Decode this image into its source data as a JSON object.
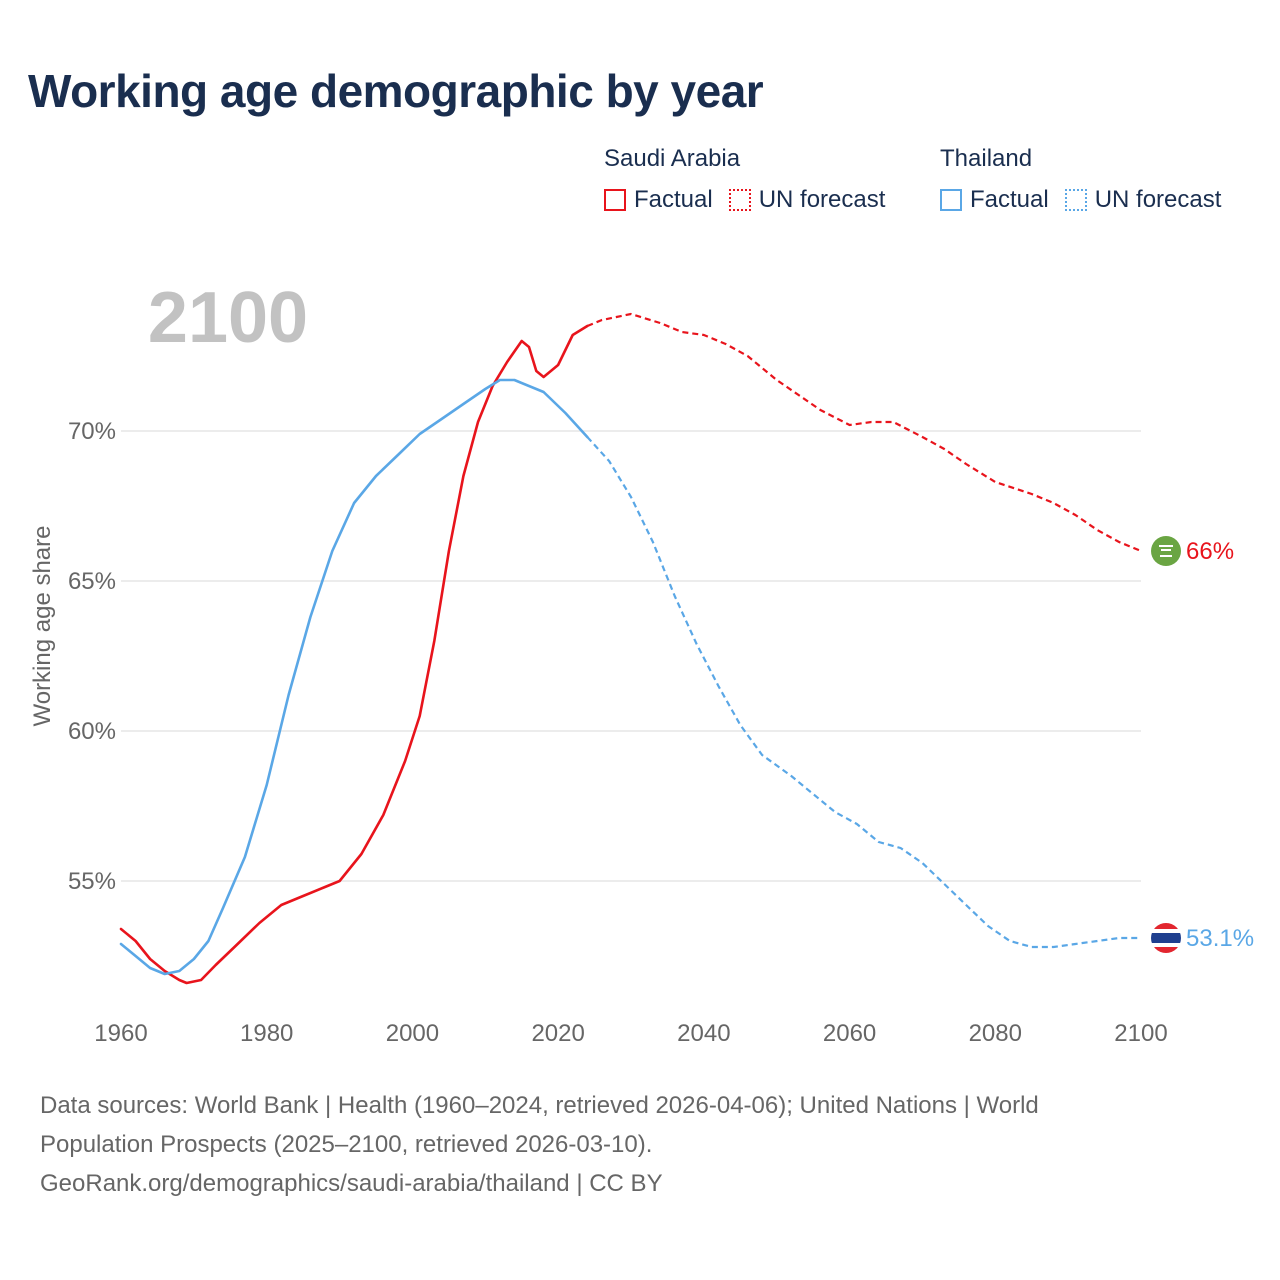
{
  "title": "Working age demographic by year",
  "legend": {
    "groups": [
      {
        "name": "Saudi Arabia",
        "color": "#e8141c",
        "factual_label": "Factual",
        "forecast_label": "UN forecast"
      },
      {
        "name": "Thailand",
        "color": "#5aa7e6",
        "factual_label": "Factual",
        "forecast_label": "UN forecast"
      }
    ]
  },
  "year_label": "2100",
  "end_labels": {
    "saudi": "66%",
    "thailand": "53.1%"
  },
  "footer": {
    "line1": "Data sources: World Bank | Health (1960–2024, retrieved 2026-04-06); United Nations | World",
    "line2": "Population Prospects (2025–2100, retrieved 2026-03-10).",
    "line3": "GeoRank.org/demographics/saudi-arabia/thailand | CC BY"
  },
  "chart_data": {
    "type": "line",
    "title": "Working age demographic by year",
    "xlabel": "",
    "ylabel": "Working age share",
    "xlim": [
      1960,
      2100
    ],
    "ylim": [
      51,
      76
    ],
    "x_ticks": [
      {
        "value": 1960,
        "label": "1960"
      },
      {
        "value": 1980,
        "label": "1980"
      },
      {
        "value": 2000,
        "label": "2000"
      },
      {
        "value": 2020,
        "label": "2020"
      },
      {
        "value": 2040,
        "label": "2040"
      },
      {
        "value": 2060,
        "label": "2060"
      },
      {
        "value": 2080,
        "label": "2080"
      },
      {
        "value": 2100,
        "label": "2100"
      }
    ],
    "y_ticks": [
      {
        "value": 55,
        "label": "55%"
      },
      {
        "value": 60,
        "label": "60%"
      },
      {
        "value": 65,
        "label": "65%"
      },
      {
        "value": 70,
        "label": "70%"
      }
    ],
    "factual_end_year": 2024,
    "series": [
      {
        "name": "Saudi Arabia",
        "color": "#e8141c",
        "end_value": 66.0,
        "points": [
          [
            1960,
            53.4
          ],
          [
            1962,
            53.0
          ],
          [
            1964,
            52.4
          ],
          [
            1966,
            52.0
          ],
          [
            1968,
            51.7
          ],
          [
            1969,
            51.6
          ],
          [
            1971,
            51.7
          ],
          [
            1973,
            52.2
          ],
          [
            1976,
            52.9
          ],
          [
            1979,
            53.6
          ],
          [
            1982,
            54.2
          ],
          [
            1985,
            54.5
          ],
          [
            1988,
            54.8
          ],
          [
            1990,
            55.0
          ],
          [
            1993,
            55.9
          ],
          [
            1996,
            57.2
          ],
          [
            1999,
            59.0
          ],
          [
            2001,
            60.5
          ],
          [
            2003,
            63.0
          ],
          [
            2005,
            66.0
          ],
          [
            2007,
            68.5
          ],
          [
            2009,
            70.3
          ],
          [
            2011,
            71.5
          ],
          [
            2013,
            72.3
          ],
          [
            2015,
            73.0
          ],
          [
            2016,
            72.8
          ],
          [
            2017,
            72.0
          ],
          [
            2018,
            71.8
          ],
          [
            2020,
            72.2
          ],
          [
            2022,
            73.2
          ],
          [
            2024,
            73.5
          ],
          [
            2026,
            73.7
          ],
          [
            2030,
            73.9
          ],
          [
            2034,
            73.6
          ],
          [
            2037,
            73.3
          ],
          [
            2040,
            73.2
          ],
          [
            2043,
            72.9
          ],
          [
            2046,
            72.5
          ],
          [
            2050,
            71.7
          ],
          [
            2053,
            71.2
          ],
          [
            2056,
            70.7
          ],
          [
            2060,
            70.2
          ],
          [
            2063,
            70.3
          ],
          [
            2066,
            70.3
          ],
          [
            2070,
            69.8
          ],
          [
            2073,
            69.4
          ],
          [
            2076,
            68.9
          ],
          [
            2080,
            68.3
          ],
          [
            2085,
            67.9
          ],
          [
            2088,
            67.6
          ],
          [
            2091,
            67.2
          ],
          [
            2094,
            66.7
          ],
          [
            2097,
            66.3
          ],
          [
            2100,
            66.0
          ]
        ]
      },
      {
        "name": "Thailand",
        "color": "#5aa7e6",
        "end_value": 53.1,
        "points": [
          [
            1960,
            52.9
          ],
          [
            1962,
            52.5
          ],
          [
            1964,
            52.1
          ],
          [
            1966,
            51.9
          ],
          [
            1968,
            52.0
          ],
          [
            1970,
            52.4
          ],
          [
            1972,
            53.0
          ],
          [
            1974,
            54.1
          ],
          [
            1977,
            55.8
          ],
          [
            1980,
            58.2
          ],
          [
            1983,
            61.2
          ],
          [
            1986,
            63.8
          ],
          [
            1989,
            66.0
          ],
          [
            1992,
            67.6
          ],
          [
            1995,
            68.5
          ],
          [
            1998,
            69.2
          ],
          [
            2001,
            69.9
          ],
          [
            2004,
            70.4
          ],
          [
            2007,
            70.9
          ],
          [
            2010,
            71.4
          ],
          [
            2012,
            71.7
          ],
          [
            2014,
            71.7
          ],
          [
            2018,
            71.3
          ],
          [
            2021,
            70.6
          ],
          [
            2024,
            69.8
          ],
          [
            2027,
            69.0
          ],
          [
            2030,
            67.8
          ],
          [
            2033,
            66.3
          ],
          [
            2036,
            64.5
          ],
          [
            2039,
            62.9
          ],
          [
            2042,
            61.5
          ],
          [
            2045,
            60.2
          ],
          [
            2048,
            59.2
          ],
          [
            2052,
            58.5
          ],
          [
            2055,
            57.9
          ],
          [
            2058,
            57.3
          ],
          [
            2061,
            56.9
          ],
          [
            2064,
            56.3
          ],
          [
            2067,
            56.1
          ],
          [
            2070,
            55.6
          ],
          [
            2073,
            54.9
          ],
          [
            2076,
            54.2
          ],
          [
            2079,
            53.5
          ],
          [
            2082,
            53.0
          ],
          [
            2085,
            52.8
          ],
          [
            2088,
            52.8
          ],
          [
            2091,
            52.9
          ],
          [
            2094,
            53.0
          ],
          [
            2097,
            53.1
          ],
          [
            2100,
            53.1
          ]
        ]
      }
    ]
  }
}
